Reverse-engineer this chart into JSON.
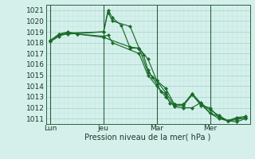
{
  "background_color": "#d5f0eb",
  "grid_color_major": "#a8d8d0",
  "grid_color_minor": "#c4e8e2",
  "line_color": "#1a6b2a",
  "marker_color": "#1a6b2a",
  "xlabel": "Pression niveau de la mer( hPa )",
  "ylim": [
    1010.5,
    1021.5
  ],
  "yticks": [
    1011,
    1012,
    1013,
    1014,
    1015,
    1016,
    1017,
    1018,
    1019,
    1020,
    1021
  ],
  "xtick_labels": [
    "Lun",
    "Jeu",
    "Mar",
    "Mer"
  ],
  "xtick_positions": [
    0,
    12,
    24,
    36
  ],
  "xlim": [
    -1,
    45
  ],
  "vline_positions": [
    0,
    12,
    24,
    36
  ],
  "series": [
    {
      "x": [
        0,
        2,
        4,
        12,
        13,
        14,
        16,
        18,
        20,
        21,
        22,
        23,
        24,
        25,
        26,
        27,
        28,
        30,
        32,
        34,
        36,
        38,
        40,
        42,
        44
      ],
      "y": [
        1018.2,
        1018.8,
        1018.9,
        1019.0,
        1021.0,
        1020.3,
        1019.6,
        1017.5,
        1017.5,
        1016.9,
        1015.5,
        1014.8,
        1014.2,
        1013.5,
        1013.3,
        1012.4,
        1012.3,
        1012.3,
        1013.3,
        1012.3,
        1011.5,
        1011.0,
        1010.8,
        1011.1,
        1011.2
      ]
    },
    {
      "x": [
        0,
        2,
        4,
        12,
        13,
        14,
        18,
        20,
        22,
        24,
        26,
        28,
        30,
        32,
        34,
        36,
        38,
        40,
        42,
        44
      ],
      "y": [
        1018.2,
        1018.7,
        1018.8,
        1019.0,
        1020.8,
        1020.0,
        1019.5,
        1017.5,
        1016.5,
        1014.5,
        1013.8,
        1012.3,
        1012.3,
        1013.3,
        1012.4,
        1011.8,
        1011.3,
        1010.8,
        1011.0,
        1011.1
      ]
    },
    {
      "x": [
        0,
        2,
        4,
        6,
        12,
        13,
        14,
        20,
        22,
        24,
        26,
        28,
        30,
        32,
        34,
        36,
        38,
        40,
        42,
        44
      ],
      "y": [
        1018.2,
        1018.8,
        1019.0,
        1018.8,
        1018.6,
        1018.7,
        1018.0,
        1017.0,
        1015.0,
        1014.0,
        1013.0,
        1012.1,
        1012.0,
        1012.0,
        1012.5,
        1011.5,
        1011.2,
        1010.8,
        1010.9,
        1011.1
      ]
    },
    {
      "x": [
        0,
        2,
        4,
        6,
        12,
        18,
        20,
        22,
        24,
        26,
        28,
        30,
        32,
        34,
        36,
        38,
        40,
        42,
        44
      ],
      "y": [
        1018.1,
        1018.6,
        1018.9,
        1018.8,
        1018.5,
        1017.6,
        1017.5,
        1015.3,
        1014.5,
        1013.4,
        1012.2,
        1012.2,
        1013.2,
        1012.2,
        1012.0,
        1011.1,
        1010.8,
        1010.7,
        1011.0
      ]
    }
  ]
}
